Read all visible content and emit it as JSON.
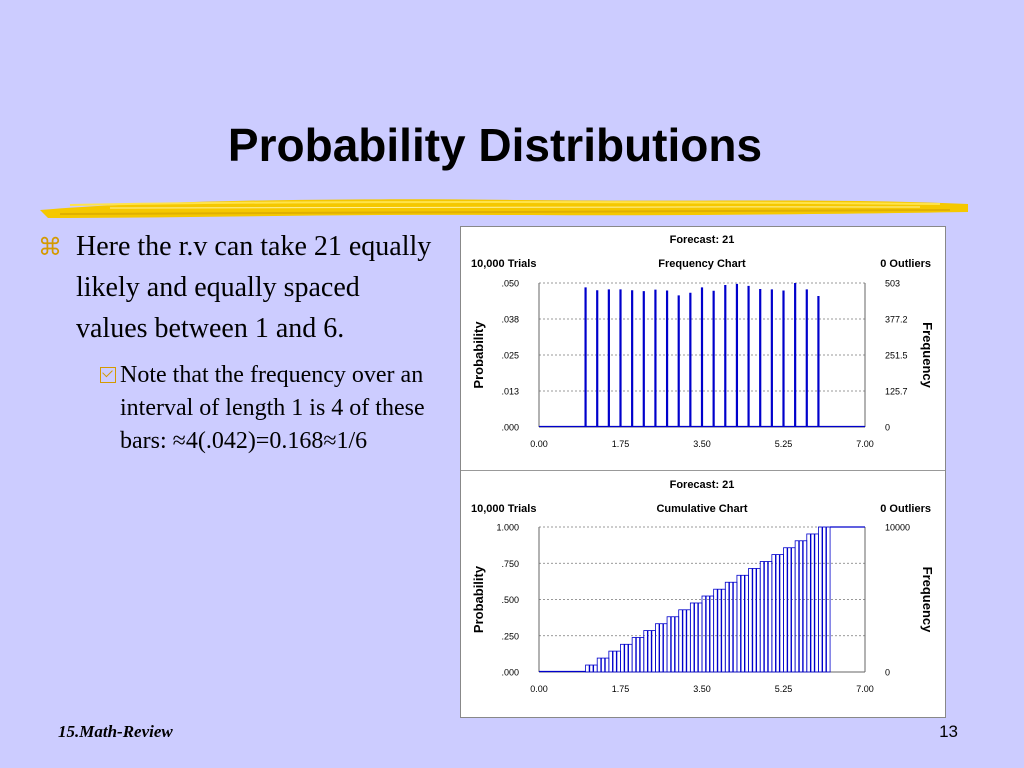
{
  "slide": {
    "title": "Probability Distributions",
    "bullet_main": "Here the r.v can take 21 equally likely and equally spaced values between 1 and 6.",
    "bullet_sub": "Note that the frequency over an interval of length 1 is 4 of these bars: ≈4(.042)=0.168≈1/6",
    "bullet_icon": "command-key-icon",
    "sub_bullet_icon": "checkbox-icon",
    "footer_left": "15.Math-Review",
    "page_number": "13"
  },
  "colors": {
    "background": "#ccccff",
    "bar": "#0000cc",
    "highlighter": "#f5c800",
    "bullet_symbol": "#d49a00"
  },
  "chart_data": [
    {
      "type": "bar",
      "forecast": "Forecast: 21",
      "trials": "10,000 Trials",
      "chart_title": "Frequency Chart",
      "outliers": "0 Outliers",
      "ylabel": "Probability",
      "y2label": "Frequency",
      "x_ticks": [
        "0.00",
        "1.75",
        "3.50",
        "5.25",
        "7.00"
      ],
      "xlim": [
        0,
        7
      ],
      "y_ticks": [
        ".000",
        ".013",
        ".025",
        ".038",
        ".050"
      ],
      "y2_ticks": [
        "0",
        "125.7",
        "251.5",
        "377.2",
        "503"
      ],
      "ylim": [
        0,
        0.05
      ],
      "grid": true,
      "x": [
        1.0,
        1.25,
        1.5,
        1.75,
        2.0,
        2.25,
        2.5,
        2.75,
        3.0,
        3.25,
        3.5,
        3.75,
        4.0,
        4.25,
        4.5,
        4.75,
        5.0,
        5.25,
        5.5,
        5.75,
        6.0
      ],
      "values": [
        0.0485,
        0.0475,
        0.0478,
        0.0478,
        0.0475,
        0.0472,
        0.0477,
        0.0474,
        0.0457,
        0.0466,
        0.0485,
        0.0473,
        0.0493,
        0.0497,
        0.049,
        0.0479,
        0.0478,
        0.0474,
        0.05,
        0.0478,
        0.0455
      ]
    },
    {
      "type": "bar",
      "forecast": "Forecast: 21",
      "trials": "10,000 Trials",
      "chart_title": "Cumulative Chart",
      "outliers": "0 Outliers",
      "ylabel": "Probability",
      "y2label": "Frequency",
      "x_ticks": [
        "0.00",
        "1.75",
        "3.50",
        "5.25",
        "7.00"
      ],
      "xlim": [
        0,
        7
      ],
      "y_ticks": [
        ".000",
        ".250",
        ".500",
        ".750",
        "1.000"
      ],
      "y2_ticks": [
        "0",
        "",
        "",
        "",
        "10000"
      ],
      "ylim": [
        0,
        1
      ],
      "grid": true,
      "x": [
        1.0,
        1.25,
        1.5,
        1.75,
        2.0,
        2.25,
        2.5,
        2.75,
        3.0,
        3.25,
        3.5,
        3.75,
        4.0,
        4.25,
        4.5,
        4.75,
        5.0,
        5.25,
        5.5,
        5.75,
        6.0
      ],
      "values": [
        0.048,
        0.096,
        0.144,
        0.191,
        0.238,
        0.286,
        0.333,
        0.381,
        0.429,
        0.476,
        0.524,
        0.571,
        0.619,
        0.667,
        0.714,
        0.762,
        0.81,
        0.857,
        0.905,
        0.952,
        1.0
      ]
    }
  ]
}
